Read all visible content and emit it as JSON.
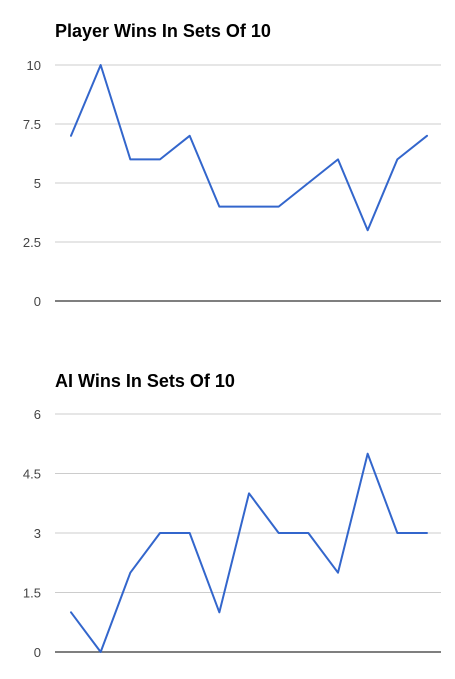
{
  "colors": {
    "line": "#3366cc",
    "grid": "#cccccc",
    "baseline": "#333333"
  },
  "chart_data": [
    {
      "type": "line",
      "title": "Player Wins In Sets Of 10",
      "x": [
        1,
        2,
        3,
        4,
        5,
        6,
        7,
        8,
        9,
        10,
        11,
        12,
        13
      ],
      "series": [
        {
          "values": [
            7,
            10,
            6,
            6,
            7,
            4,
            4,
            4,
            5,
            6,
            3,
            6,
            7
          ]
        }
      ],
      "ylim": [
        0,
        10
      ],
      "yticks": [
        "0",
        "2.5",
        "5",
        "7.5",
        "10"
      ],
      "xlabel": "",
      "ylabel": "",
      "grid": true,
      "legend": "none"
    },
    {
      "type": "line",
      "title": "AI Wins In Sets Of 10",
      "x": [
        1,
        2,
        3,
        4,
        5,
        6,
        7,
        8,
        9,
        10,
        11,
        12,
        13
      ],
      "series": [
        {
          "values": [
            1,
            0,
            2,
            3,
            3,
            1,
            4,
            3,
            3,
            2,
            5,
            3,
            3
          ]
        }
      ],
      "ylim": [
        0,
        6
      ],
      "yticks": [
        "0",
        "1.5",
        "3",
        "4.5",
        "6"
      ],
      "xlabel": "",
      "ylabel": "",
      "grid": true,
      "legend": "none"
    }
  ]
}
